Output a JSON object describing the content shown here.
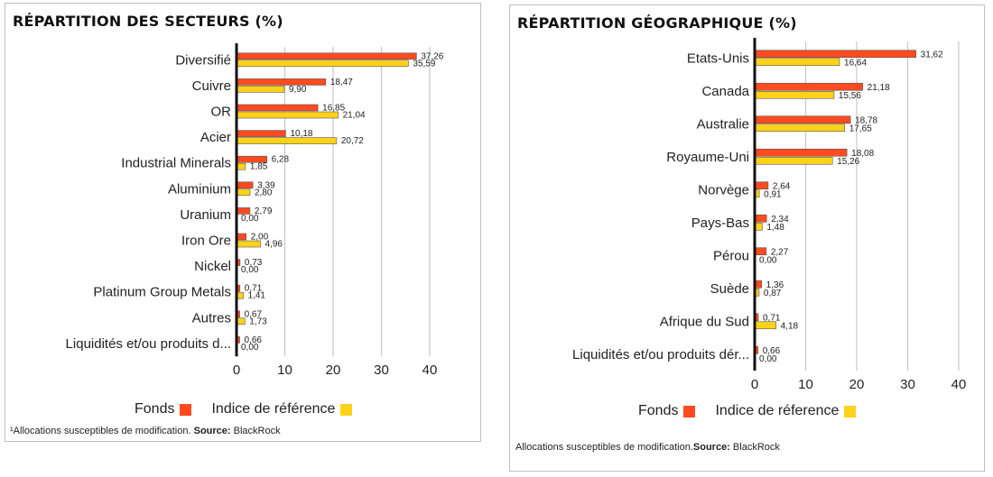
{
  "colors": {
    "fonds": "#ff4b1f",
    "indice": "#ffd21a",
    "grid": "#c8c8c8",
    "axis": "#111111"
  },
  "left": {
    "title": "RÉPARTITION DES SECTEURS (%)",
    "legend": {
      "fonds": "Fonds",
      "indice": "Indice de référence"
    },
    "footnote_prefix": "¹Allocations susceptibles de modification. ",
    "footnote_source_label": "Source:",
    "footnote_source": " BlackRock"
  },
  "right": {
    "title": "RÉPARTITION GÉOGRAPHIQUE (%)",
    "legend": {
      "fonds": "Fonds",
      "indice": "Indice de réference"
    },
    "footnote_prefix": "Allocations susceptibles de modification.",
    "footnote_source_label": "Source:",
    "footnote_source": " BlackRock"
  },
  "chart_data": [
    {
      "type": "bar",
      "orientation": "horizontal",
      "title": "RÉPARTITION DES SECTEURS (%)",
      "categories": [
        "Diversifié",
        "Cuivre",
        "OR",
        "Acier",
        "Industrial Minerals",
        "Aluminium",
        "Uranium",
        "Iron Ore",
        "Nickel",
        "Platinum Group Metals",
        "Autres",
        "Liquidités et/ou produits d..."
      ],
      "series": [
        {
          "name": "Fonds",
          "values": [
            37.26,
            18.47,
            16.85,
            10.18,
            6.28,
            3.39,
            2.79,
            2.0,
            0.73,
            0.71,
            0.67,
            0.66
          ],
          "labels": [
            "37,26",
            "18,47",
            "16,85",
            "10,18",
            "6,28",
            "3,39",
            "2,79",
            "2,00",
            "0,73",
            "0,71",
            "0,67",
            "0,66"
          ]
        },
        {
          "name": "Indice de référence",
          "values": [
            35.59,
            9.9,
            21.04,
            20.72,
            1.85,
            2.8,
            0.0,
            4.96,
            0.0,
            1.41,
            1.73,
            0.0
          ],
          "labels": [
            "35,59",
            "9,90",
            "21,04",
            "20,72",
            "1,85",
            "2,80",
            "0,00",
            "4,96",
            "0,00",
            "1,41",
            "1,73",
            "0,00"
          ]
        }
      ],
      "xlim": [
        0,
        40
      ],
      "xticks": [
        0,
        10,
        20,
        30,
        40
      ],
      "grid": true,
      "legend_position": "bottom"
    },
    {
      "type": "bar",
      "orientation": "horizontal",
      "title": "RÉPARTITION GÉOGRAPHIQUE (%)",
      "categories": [
        "Etats-Unis",
        "Canada",
        "Australie",
        "Royaume-Uni",
        "Norvège",
        "Pays-Bas",
        "Pérou",
        "Suède",
        "Afrique du Sud",
        "Liquidités et/ou produits dér..."
      ],
      "series": [
        {
          "name": "Fonds",
          "values": [
            31.62,
            21.18,
            18.78,
            18.08,
            2.64,
            2.34,
            2.27,
            1.36,
            0.71,
            0.66
          ],
          "labels": [
            "31,62",
            "21,18",
            "18,78",
            "18,08",
            "2,64",
            "2,34",
            "2,27",
            "1,36",
            "0,71",
            "0,66"
          ]
        },
        {
          "name": "Indice de réference",
          "values": [
            16.64,
            15.56,
            17.65,
            15.26,
            0.91,
            1.48,
            0.0,
            0.87,
            4.18,
            0.0
          ],
          "labels": [
            "16,64",
            "15,56",
            "17,65",
            "15,26",
            "0,91",
            "1,48",
            "0,00",
            "0,87",
            "4,18",
            "0,00"
          ]
        }
      ],
      "xlim": [
        0,
        40
      ],
      "xticks": [
        0,
        10,
        20,
        30,
        40
      ],
      "grid": true,
      "legend_position": "bottom"
    }
  ]
}
